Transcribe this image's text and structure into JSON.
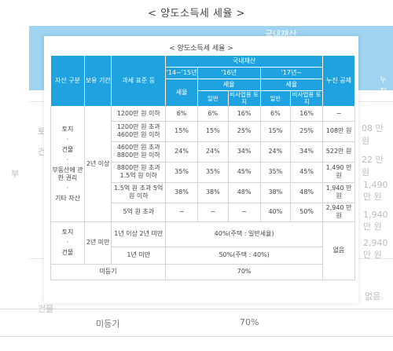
{
  "page_title": "< 양도소득세 세율 >",
  "background": {
    "header_label": "국내재산",
    "header_right_label": "누진 공제",
    "left_fragments": [
      "부",
      "토지",
      "건물",
      "건물"
    ],
    "right_values": [
      "08 만 원",
      "22 만 원",
      "1,490 만 원",
      "1,940 만 원",
      "2,940 만 원",
      "없음"
    ],
    "bottom_label": "미등기",
    "bottom_value": "70%"
  },
  "card": {
    "title": "< 양도소득세 세율 >",
    "header": {
      "asset_type": "자산 구분",
      "holding_period": "보유 기간",
      "tax_base": "과세 표준 등",
      "domestic_assets": "국내재산",
      "year_14_15": "'14~'15년",
      "year_16": "'16년",
      "year_17": "'17년~",
      "tax_rate": "세율",
      "tax_rate_16": "세율",
      "tax_rate_17": "세율",
      "general_16": "일반",
      "non_business_land_16": "비사업용 토지",
      "general_17": "일반",
      "non_business_land_17": "비사업용 토지",
      "progressive_deduction": "누진 공제"
    },
    "group1": {
      "asset_lines": [
        "토지",
        "·",
        "건물",
        "·",
        "부동산에 관한 권리",
        "·",
        "기타 자산"
      ],
      "holding": "2년 이상",
      "rows": [
        {
          "base": "1200만 원 이하",
          "r1415": "6%",
          "r16_general": "6%",
          "r16_nonbiz": "16%",
          "r17_general": "6%",
          "r17_nonbiz": "16%",
          "deduction": "−"
        },
        {
          "base": "1200만 원 초과 4600만 원 이하",
          "r1415": "15%",
          "r16_general": "15%",
          "r16_nonbiz": "25%",
          "r17_general": "15%",
          "r17_nonbiz": "25%",
          "deduction": "108만 원"
        },
        {
          "base": "4600만 원 초과 8800만 원 이하",
          "r1415": "24%",
          "r16_general": "24%",
          "r16_nonbiz": "34%",
          "r17_general": "24%",
          "r17_nonbiz": "34%",
          "deduction": "522만 원"
        },
        {
          "base": "8800만 원 초과 1.5억 원 이하",
          "r1415": "35%",
          "r16_general": "35%",
          "r16_nonbiz": "45%",
          "r17_general": "35%",
          "r17_nonbiz": "45%",
          "deduction": "1,490 만 원"
        },
        {
          "base": "1.5억 원 초과 5억 원 이하",
          "r1415": "38%",
          "r16_general": "38%",
          "r16_nonbiz": "48%",
          "r17_general": "38%",
          "r17_nonbiz": "48%",
          "deduction": "1,940 만 원"
        },
        {
          "base": "5억 원 초과",
          "r1415": "−",
          "r16_general": "−",
          "r16_nonbiz": "−",
          "r17_general": "40%",
          "r17_nonbiz": "50%",
          "deduction": "2,940 만 원"
        }
      ]
    },
    "group2": {
      "asset_lines": [
        "토지",
        "·",
        "건물"
      ],
      "holding": "2년 미만",
      "row1_base": "1년 이상 2년 미만",
      "row1_rate": "40%(주택 : 일반세율)",
      "row2_base": "1년 미만",
      "row2_rate": "50%(주택 : 40%)",
      "deduction": "없음"
    },
    "unregistered": {
      "label": "미등기",
      "rate": "70%"
    }
  }
}
